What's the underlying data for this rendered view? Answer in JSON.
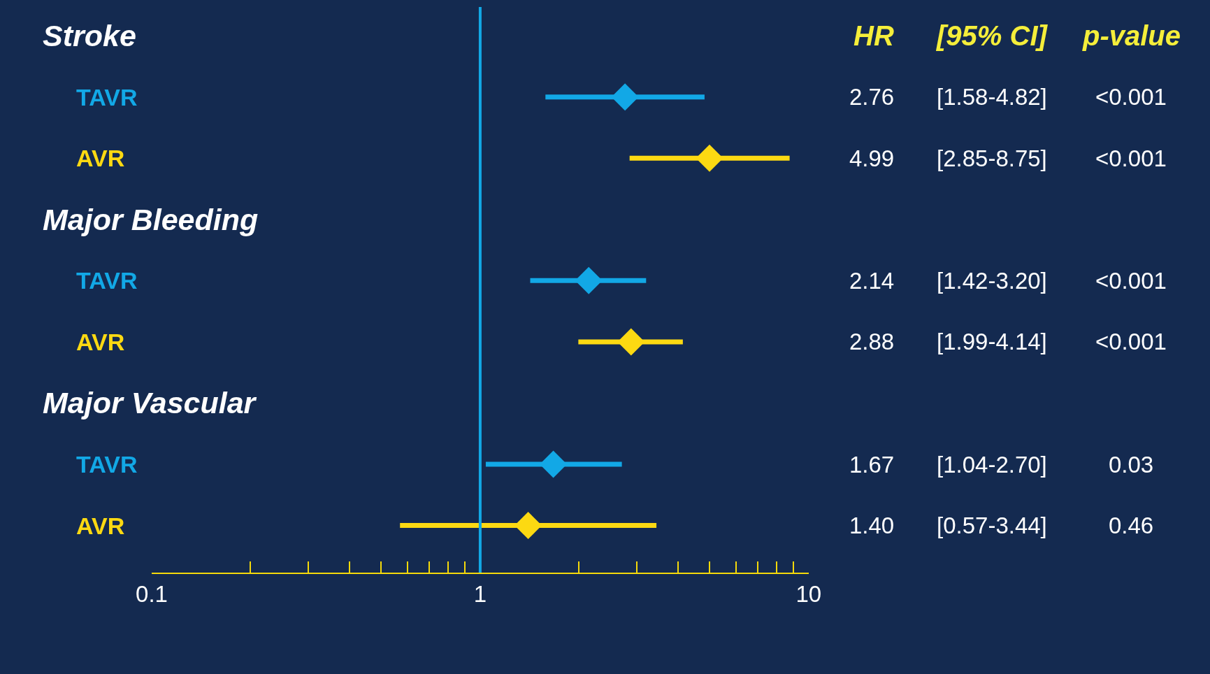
{
  "chart_data": {
    "type": "scatter",
    "orientation": "horizontal",
    "log": "x",
    "grid": false,
    "marker": "diamond",
    "categories": [
      "Stroke",
      "TAVR",
      "AVR",
      "Major Bleeding",
      "TAVR",
      "AVR",
      "Major Vascular",
      "TAVR",
      "AVR"
    ],
    "series": [
      {
        "color": "#12a8e6",
        "values": [
          null,
          2.76,
          null,
          null,
          2.14,
          null,
          null,
          1.67,
          null
        ],
        "errors": [
          null,
          [
            1.58,
            4.82
          ],
          null,
          null,
          [
            1.42,
            3.2
          ],
          null,
          null,
          [
            1.04,
            2.7
          ],
          null
        ]
      },
      {
        "color": "#fcd912",
        "values": [
          null,
          null,
          4.99,
          null,
          null,
          2.88,
          null,
          null,
          1.4
        ],
        "errors": [
          null,
          null,
          [
            2.85,
            8.75
          ],
          null,
          null,
          [
            1.99,
            4.14
          ],
          null,
          null,
          [
            0.57,
            3.44
          ]
        ]
      }
    ],
    "xlim": [
      0.1,
      10
    ],
    "xticks": [
      0.1,
      {
        "value": 0.2,
        "label": null
      },
      {
        "value": 0.3,
        "label": null
      },
      {
        "value": 0.4,
        "label": null
      },
      {
        "value": 0.5,
        "label": null
      },
      {
        "value": 0.6,
        "label": null
      },
      {
        "value": 0.7,
        "label": null
      },
      {
        "value": 0.8,
        "label": null
      },
      {
        "value": 0.9,
        "label": null
      },
      1,
      {
        "value": 2,
        "label": null
      },
      {
        "value": 3,
        "label": null
      },
      {
        "value": 4,
        "label": null
      },
      {
        "value": 5,
        "label": null
      },
      {
        "value": 6,
        "label": null
      },
      {
        "value": 7,
        "label": null
      },
      {
        "value": 8,
        "label": null
      },
      {
        "value": 9,
        "label": null
      },
      10
    ],
    "ref_lines": [
      {
        "axis": "x",
        "value": 1,
        "color": "#12a8e6"
      }
    ],
    "annotations": [
      "HR",
      "[95% CI]",
      "p-value",
      "2.76",
      "4.99",
      "2.14",
      "2.88",
      "1.67",
      "1.40",
      "[1.58-4.82]",
      "[2.85-8.75]",
      "[1.42-3.20]",
      "[1.99-4.14]",
      "[1.04-2.70]",
      "[0.57-3.44]",
      "<0.001",
      "<0.001",
      "<0.001",
      "<0.001",
      "0.03",
      "0.46"
    ]
  }
}
